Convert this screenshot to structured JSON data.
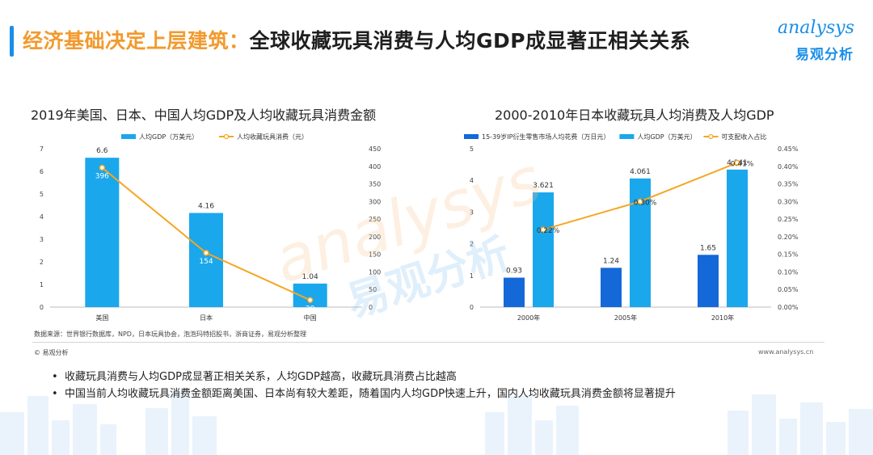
{
  "header": {
    "title_lead": "经济基础决定上层建筑：",
    "title_rest": "全球收藏玩具消费与人均GDP成显著正相关关系"
  },
  "logo": {
    "word": "analysys",
    "cn": "易观分析"
  },
  "watermark": {
    "word": "analysys",
    "cn": "易观分析"
  },
  "colors": {
    "accent_blue": "#1a8ee8",
    "bar_light_blue": "#1aa7ec",
    "bar_dark_blue": "#1468d8",
    "line_orange": "#f5a623",
    "title_orange": "#f29a2e"
  },
  "chart_data": [
    {
      "type": "bar",
      "title": "2019年美国、日本、中国人均GDP及人均收藏玩具消费金额",
      "categories": [
        "美国",
        "日本",
        "中国"
      ],
      "series": [
        {
          "name": "人均GDP（万美元）",
          "kind": "bar",
          "axis": "left",
          "values": [
            6.6,
            4.16,
            1.04
          ],
          "labels": [
            "6.6",
            "4.16",
            "1.04"
          ]
        },
        {
          "name": "人均收藏玩具消费（元）",
          "kind": "line",
          "axis": "right",
          "values": [
            396,
            154,
            20
          ],
          "labels": [
            "396",
            "154",
            "20"
          ]
        }
      ],
      "ylim_left": [
        0,
        7
      ],
      "yticks_left": [
        "0",
        "1",
        "2",
        "3",
        "4",
        "5",
        "6",
        "7"
      ],
      "ylim_right": [
        0,
        450
      ],
      "yticks_right": [
        "0",
        "50",
        "100",
        "150",
        "200",
        "250",
        "300",
        "350",
        "400",
        "450"
      ],
      "legend": "top"
    },
    {
      "type": "bar",
      "title": "2000-2010年日本收藏玩具人均消费及人均GDP",
      "categories": [
        "2000年",
        "2005年",
        "2010年"
      ],
      "series": [
        {
          "name": "15-39岁IP衍生零售市场人均花费（万日元）",
          "kind": "bar",
          "axis": "left",
          "values": [
            0.93,
            1.24,
            1.65
          ],
          "labels": [
            "0.93",
            "1.24",
            "1.65"
          ]
        },
        {
          "name": "人均GDP（万美元）",
          "kind": "bar",
          "axis": "left",
          "values": [
            3.621,
            4.061,
            4.341
          ],
          "labels": [
            "3.621",
            "4.061",
            "4.341"
          ]
        },
        {
          "name": "可支配收入占比",
          "kind": "line",
          "axis": "right",
          "values": [
            0.22,
            0.3,
            0.41
          ],
          "labels": [
            "0.22%",
            "0.30%",
            "0.41%"
          ]
        }
      ],
      "ylim_left": [
        0,
        5
      ],
      "yticks_left": [
        "0",
        "1",
        "2",
        "3",
        "4",
        "5"
      ],
      "ylim_right": [
        0,
        0.45
      ],
      "yticks_right": [
        "0.00%",
        "0.05%",
        "0.10%",
        "0.15%",
        "0.20%",
        "0.25%",
        "0.30%",
        "0.35%",
        "0.40%",
        "0.45%"
      ],
      "legend": "top"
    }
  ],
  "source_note": "数据来源：世界银行数据库，NPD，日本玩具协会，泡泡玛特招股书，浙商证券，易观分析整理",
  "footer": {
    "copyright": "© 易观分析",
    "url": "www.analysys.cn"
  },
  "bullets": [
    "收藏玩具消费与人均GDP成显著正相关关系，人均GDP越高，收藏玩具消费占比越高",
    "中国当前人均收藏玩具消费金额距离美国、日本尚有较大差距，随着国内人均GDP快速上升，国内人均收藏玩具消费金额将显著提升"
  ]
}
